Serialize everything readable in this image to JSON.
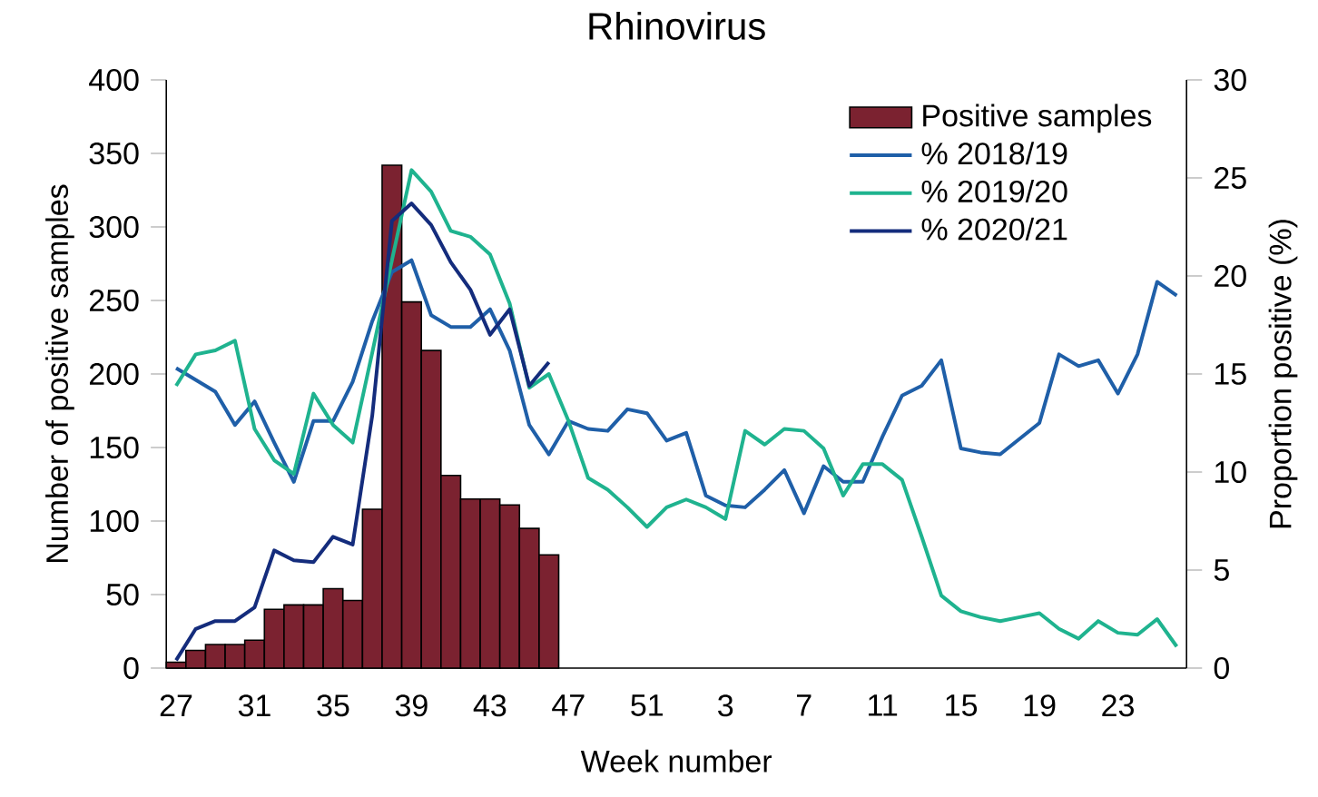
{
  "chart_data": {
    "type": "bar",
    "title": "Rhinovirus",
    "xlabel": "Week number",
    "ylabel": "Number of positive samples",
    "y2label": "Proportion positive (%)",
    "categories": [
      "27",
      null,
      null,
      null,
      "31",
      null,
      null,
      null,
      "35",
      null,
      null,
      null,
      "39",
      null,
      null,
      null,
      "43",
      null,
      null,
      null,
      "47",
      null,
      null,
      null,
      "51",
      null,
      null,
      null,
      "3",
      null,
      null,
      null,
      "7",
      null,
      null,
      null,
      "11",
      null,
      null,
      null,
      "15",
      null,
      null,
      null,
      "19",
      null,
      null,
      null,
      "23",
      null,
      null,
      null
    ],
    "ylim": [
      0,
      400
    ],
    "yticks": [
      0,
      50,
      100,
      150,
      200,
      250,
      300,
      350,
      400
    ],
    "y2lim": [
      0,
      30
    ],
    "y2ticks": [
      0,
      5,
      10,
      15,
      20,
      25,
      30
    ],
    "legend": "top right",
    "series": [
      {
        "name": "Positive samples",
        "color": "#7b2230",
        "values": [
          4,
          12,
          16,
          16,
          19,
          40,
          43,
          43,
          54,
          46,
          108,
          342,
          249,
          216,
          131,
          115,
          115,
          111,
          95,
          77,
          null,
          null,
          null,
          null,
          null,
          null,
          null,
          null,
          null,
          null,
          null,
          null,
          null,
          null,
          null,
          null,
          null,
          null,
          null,
          null,
          null,
          null,
          null,
          null,
          null,
          null,
          null,
          null,
          null,
          null,
          null,
          null
        ]
      },
      {
        "name": "% 2018/19",
        "type": "line",
        "axis": "y2",
        "color": "#1f5fa8",
        "values": [
          15.3,
          14.7,
          14.1,
          12.4,
          13.6,
          11.5,
          9.5,
          12.6,
          12.6,
          14.6,
          17.7,
          20.2,
          20.8,
          18.0,
          17.4,
          17.4,
          18.3,
          16.2,
          12.4,
          10.9,
          12.6,
          12.2,
          12.1,
          13.2,
          13.0,
          11.6,
          12.0,
          8.8,
          8.3,
          8.2,
          9.1,
          10.1,
          7.9,
          10.3,
          9.5,
          9.5,
          11.8,
          13.9,
          14.4,
          15.7,
          11.2,
          11.0,
          10.9,
          11.7,
          12.5,
          16.0,
          15.4,
          15.7,
          14.0,
          16.0,
          19.7,
          19.0
        ]
      },
      {
        "name": "% 2019/20",
        "type": "line",
        "axis": "y2",
        "color": "#1fb38f",
        "values": [
          14.4,
          16.0,
          16.2,
          16.7,
          12.2,
          10.6,
          9.9,
          14.0,
          12.4,
          11.5,
          16.1,
          20.8,
          25.4,
          24.3,
          22.3,
          22.0,
          21.1,
          18.6,
          14.3,
          15.0,
          12.6,
          9.7,
          9.1,
          8.2,
          7.2,
          8.2,
          8.6,
          8.2,
          7.6,
          12.1,
          11.4,
          12.2,
          12.1,
          11.2,
          8.8,
          10.4,
          10.4,
          9.6,
          6.7,
          3.7,
          2.9,
          2.6,
          2.4,
          2.6,
          2.8,
          2.0,
          1.5,
          2.4,
          1.8,
          1.7,
          2.5,
          1.1
        ]
      },
      {
        "name": "% 2020/21",
        "type": "line",
        "axis": "y2",
        "color": "#142c7c",
        "values": [
          0.4,
          2.0,
          2.4,
          2.4,
          3.1,
          6.0,
          5.5,
          5.4,
          6.7,
          6.3,
          12.9,
          22.8,
          23.7,
          22.6,
          20.7,
          19.3,
          17.0,
          18.3,
          14.4,
          15.6,
          null,
          null,
          null,
          null,
          null,
          null,
          null,
          null,
          null,
          null,
          null,
          null,
          null,
          null,
          null,
          null,
          null,
          null,
          null,
          null,
          null,
          null,
          null,
          null,
          null,
          null,
          null,
          null,
          null,
          null,
          null,
          null
        ]
      }
    ]
  }
}
